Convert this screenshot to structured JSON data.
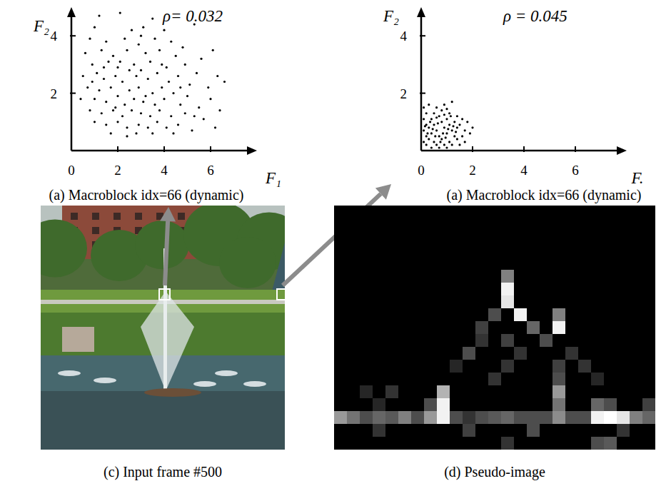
{
  "chart_data": [
    {
      "type": "scatter",
      "title": "(a) Macroblock idx=66 (dynamic)",
      "x_label": "F₁",
      "y_label": "F₂",
      "annotation": "ρ= 0.032",
      "xlim": [
        0,
        8
      ],
      "ylim": [
        0,
        5
      ],
      "xticks": [
        0,
        2,
        4,
        6
      ],
      "yticks": [
        2,
        4
      ],
      "grid": false,
      "color": "#000000",
      "marker": "dot",
      "x": [
        1.2,
        2.1,
        3.5,
        1.0,
        2.6,
        3.1,
        4.0,
        5.3,
        0.8,
        1.5,
        2.3,
        2.9,
        3.6,
        4.3,
        4.8,
        6.1,
        0.6,
        1.3,
        1.8,
        2.4,
        3.2,
        3.8,
        4.5,
        5.6,
        0.9,
        1.6,
        2.0,
        2.7,
        3.0,
        3.4,
        4.1,
        4.9,
        5.4,
        6.3,
        0.5,
        1.1,
        1.4,
        1.9,
        2.2,
        2.8,
        3.3,
        3.7,
        4.2,
        4.6,
        5.1,
        5.9,
        0.7,
        1.2,
        1.7,
        2.5,
        2.9,
        3.5,
        3.9,
        4.4,
        5.0,
        6.0,
        0.4,
        1.0,
        1.5,
        2.0,
        2.3,
        2.7,
        3.1,
        3.6,
        4.0,
        4.7,
        5.5,
        6.4,
        0.8,
        1.3,
        1.8,
        2.2,
        2.6,
        3.0,
        3.4,
        3.8,
        4.3,
        4.9,
        5.7,
        1.0,
        1.5,
        2.0,
        2.4,
        2.9,
        3.3,
        3.7,
        4.1,
        4.6,
        5.2,
        6.2,
        1.7,
        2.8,
        3.5,
        4.4,
        1.4,
        2.5,
        3.9,
        4.7,
        1.9,
        3.2,
        2.1,
        0.9,
        5.3,
        6.6,
        3.0,
        2.4
      ],
      "values": [
        4.7,
        4.8,
        4.6,
        4.3,
        4.2,
        4.3,
        4.2,
        4.4,
        3.9,
        3.8,
        3.9,
        3.7,
        3.9,
        3.8,
        3.6,
        3.5,
        3.4,
        3.5,
        3.3,
        3.5,
        3.4,
        3.5,
        3.3,
        3.2,
        3.0,
        3.1,
        2.9,
        3.0,
        2.8,
        3.1,
        2.9,
        3.0,
        2.7,
        2.6,
        2.6,
        2.7,
        2.5,
        2.6,
        2.4,
        2.6,
        2.5,
        2.7,
        2.4,
        2.6,
        2.3,
        2.2,
        2.2,
        2.1,
        2.2,
        2.1,
        2.2,
        2.0,
        2.2,
        2.0,
        1.9,
        1.8,
        1.8,
        1.8,
        1.7,
        1.9,
        1.6,
        1.8,
        1.7,
        1.6,
        1.8,
        1.6,
        1.5,
        1.4,
        1.4,
        1.3,
        1.4,
        1.2,
        1.4,
        1.3,
        1.2,
        1.4,
        1.2,
        1.3,
        1.1,
        1.0,
        0.9,
        1.0,
        0.8,
        0.9,
        0.8,
        1.0,
        0.8,
        0.9,
        0.7,
        0.8,
        0.6,
        0.6,
        0.6,
        0.6,
        2.9,
        2.8,
        3.0,
        2.2,
        1.5,
        1.9,
        3.1,
        2.4,
        1.2,
        2.4,
        4.0,
        0.5
      ]
    },
    {
      "type": "scatter",
      "title": "(a) Macroblock idx=66 (dynamic)",
      "x_label": "F.",
      "y_label": "F₂",
      "annotation": "ρ = 0.045",
      "xlim": [
        0,
        8
      ],
      "ylim": [
        0,
        5
      ],
      "xticks": [
        0,
        2,
        4,
        6
      ],
      "yticks": [
        2,
        4
      ],
      "grid": false,
      "color": "#000000",
      "marker": "dot",
      "x": [
        0.1,
        0.3,
        0.6,
        0.9,
        1.2,
        0.2,
        0.5,
        0.8,
        1.1,
        1.4,
        0.1,
        0.4,
        0.7,
        1.0,
        1.3,
        1.6,
        0.2,
        0.5,
        0.8,
        1.1,
        1.5,
        1.8,
        0.1,
        0.3,
        0.6,
        0.9,
        1.2,
        1.4,
        1.7,
        2.0,
        0.2,
        0.4,
        0.7,
        1.0,
        1.3,
        1.6,
        1.9,
        0.1,
        0.3,
        0.5,
        0.8,
        1.1,
        1.4,
        1.7,
        0.2,
        0.6,
        0.9,
        1.2,
        1.5,
        0.4,
        0.7,
        1.0,
        0.35,
        0.65,
        0.85,
        1.05,
        0.45,
        0.55,
        0.95,
        1.25,
        0.75,
        0.25,
        1.15,
        0.6,
        1.35,
        0.15,
        1.0,
        0.9
      ],
      "values": [
        1.5,
        1.6,
        1.5,
        1.6,
        1.7,
        1.3,
        1.3,
        1.4,
        1.3,
        1.2,
        1.1,
        1.1,
        1.2,
        1.1,
        1.0,
        1.1,
        0.9,
        0.9,
        1.0,
        0.9,
        0.9,
        1.0,
        0.7,
        0.8,
        0.7,
        0.8,
        0.7,
        0.8,
        0.7,
        0.8,
        0.5,
        0.6,
        0.5,
        0.6,
        0.5,
        0.5,
        0.6,
        0.3,
        0.4,
        0.3,
        0.4,
        0.3,
        0.4,
        0.3,
        0.2,
        0.2,
        0.2,
        0.2,
        0.2,
        0.1,
        0.1,
        0.1,
        1.0,
        0.95,
        0.6,
        0.75,
        0.75,
        0.5,
        0.45,
        0.85,
        0.3,
        0.6,
        1.2,
        1.15,
        0.65,
        0.85,
        1.45,
        1.25
      ]
    }
  ],
  "photo": {
    "caption": "(c) Input frame #500"
  },
  "pseudo_image": {
    "caption": "(d) Pseudo-image",
    "rows": 19,
    "cols": 25,
    "cells": [
      [
        5,
        13,
        0.5
      ],
      [
        6,
        13,
        0.95
      ],
      [
        7,
        13,
        0.9
      ],
      [
        8,
        14,
        0.95
      ],
      [
        8,
        12,
        0.3
      ],
      [
        9,
        15,
        0.4
      ],
      [
        9,
        17,
        0.95
      ],
      [
        8,
        17,
        0.5
      ],
      [
        10,
        16,
        0.3
      ],
      [
        9,
        11,
        0.25
      ],
      [
        10,
        11,
        0.2
      ],
      [
        11,
        10,
        0.3
      ],
      [
        14,
        8,
        0.7
      ],
      [
        15,
        8,
        0.95
      ],
      [
        15,
        7,
        0.3
      ],
      [
        14,
        4,
        0.2
      ],
      [
        16,
        0,
        0.6
      ],
      [
        16,
        1,
        0.45
      ],
      [
        16,
        2,
        0.3
      ],
      [
        16,
        3,
        0.4
      ],
      [
        16,
        4,
        0.35
      ],
      [
        16,
        5,
        0.5
      ],
      [
        16,
        6,
        0.3
      ],
      [
        16,
        7,
        0.6
      ],
      [
        16,
        8,
        0.95
      ],
      [
        16,
        9,
        0.3
      ],
      [
        16,
        10,
        0.2
      ],
      [
        16,
        11,
        0.3
      ],
      [
        16,
        12,
        0.35
      ],
      [
        16,
        13,
        0.4
      ],
      [
        16,
        14,
        0.3
      ],
      [
        16,
        15,
        0.3
      ],
      [
        16,
        16,
        0.3
      ],
      [
        16,
        17,
        0.55
      ],
      [
        16,
        18,
        0.3
      ],
      [
        16,
        19,
        0.3
      ],
      [
        16,
        20,
        0.95
      ],
      [
        16,
        21,
        1.0
      ],
      [
        16,
        22,
        0.9
      ],
      [
        16,
        23,
        0.5
      ],
      [
        16,
        24,
        0.4
      ],
      [
        15,
        20,
        0.4
      ],
      [
        15,
        21,
        0.3
      ],
      [
        14,
        17,
        0.6
      ],
      [
        15,
        17,
        0.45
      ],
      [
        13,
        17,
        0.3
      ],
      [
        12,
        17,
        0.25
      ],
      [
        17,
        3,
        0.2
      ],
      [
        17,
        10,
        0.25
      ],
      [
        17,
        15,
        0.3
      ],
      [
        18,
        13,
        0.2
      ],
      [
        18,
        20,
        0.3
      ],
      [
        18,
        21,
        0.35
      ],
      [
        17,
        22,
        0.2
      ],
      [
        12,
        9,
        0.15
      ],
      [
        11,
        14,
        0.2
      ],
      [
        10,
        13,
        0.25
      ],
      [
        12,
        13,
        0.2
      ],
      [
        13,
        12,
        0.2
      ],
      [
        11,
        18,
        0.2
      ],
      [
        12,
        19,
        0.2
      ],
      [
        13,
        20,
        0.15
      ],
      [
        14,
        2,
        0.15
      ],
      [
        15,
        3,
        0.15
      ],
      [
        15,
        24,
        0.25
      ]
    ]
  }
}
